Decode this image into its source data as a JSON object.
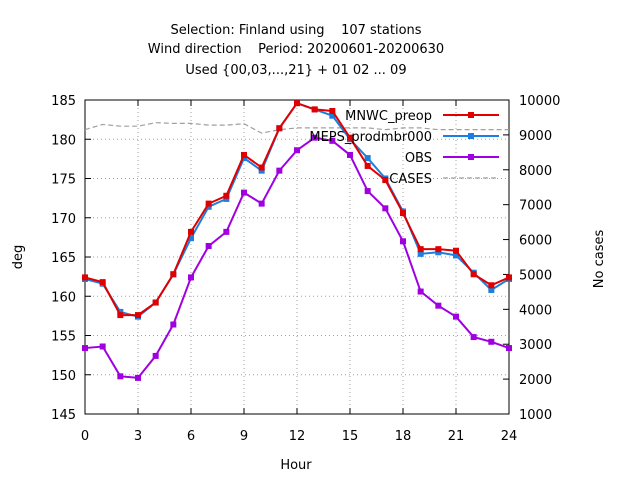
{
  "chart_data": {
    "type": "line",
    "title_lines": [
      "Selection: Finland using    107 stations",
      "Wind direction    Period: 20200601-20200630",
      "Used {00,03,...,21} + 01 02 ... 09"
    ],
    "xlabel": "Hour",
    "ylabel": "deg",
    "y2label": "No cases",
    "xlim": [
      0,
      24
    ],
    "ylim": [
      145,
      185
    ],
    "y2lim": [
      1000,
      10000
    ],
    "xticks": [
      0,
      3,
      6,
      9,
      12,
      15,
      18,
      21,
      24
    ],
    "yticks": [
      145,
      150,
      155,
      160,
      165,
      170,
      175,
      180,
      185
    ],
    "y2ticks": [
      1000,
      2000,
      3000,
      4000,
      5000,
      6000,
      7000,
      8000,
      9000,
      10000
    ],
    "grid": true,
    "legend_position": "top-right",
    "x": [
      0,
      1,
      2,
      3,
      4,
      5,
      6,
      7,
      8,
      9,
      10,
      11,
      12,
      13,
      14,
      15,
      16,
      17,
      18,
      19,
      20,
      21,
      22,
      23,
      24
    ],
    "series": [
      {
        "name": "MNWC_preop",
        "color": "#e00000",
        "marker": "square",
        "axis": "left",
        "values": [
          162.4,
          161.8,
          157.6,
          157.6,
          159.2,
          162.8,
          168.2,
          171.8,
          172.8,
          178.0,
          176.4,
          181.4,
          184.6,
          183.8,
          183.6,
          180.2,
          176.6,
          174.8,
          170.6,
          166.0,
          166.0,
          165.8,
          162.8,
          161.4,
          162.4
        ]
      },
      {
        "name": "MEPS_prodmbr000",
        "color": "#1a7fe0",
        "marker": "square",
        "axis": "left",
        "values": [
          162.2,
          161.6,
          158.0,
          157.4,
          159.2,
          162.8,
          167.4,
          171.4,
          172.4,
          177.6,
          176.0,
          181.4,
          184.6,
          183.8,
          183.0,
          180.0,
          177.6,
          175.0,
          170.8,
          165.4,
          165.6,
          165.2,
          163.0,
          160.8,
          162.2
        ]
      },
      {
        "name": "OBS",
        "color": "#a000e0",
        "marker": "square",
        "axis": "left",
        "values": [
          153.4,
          153.6,
          149.8,
          149.6,
          152.4,
          156.4,
          162.4,
          166.4,
          168.2,
          173.2,
          171.8,
          176.0,
          178.6,
          180.2,
          179.8,
          178.0,
          173.4,
          171.2,
          167.0,
          160.6,
          158.8,
          157.4,
          154.8,
          154.2,
          153.4
        ]
      },
      {
        "name": "CASES",
        "color": "#a0a0a0",
        "marker": "none",
        "dashed": true,
        "axis": "right",
        "values": [
          9150,
          9300,
          9250,
          9250,
          9350,
          9330,
          9330,
          9280,
          9280,
          9320,
          9050,
          9150,
          9200,
          9200,
          9200,
          9200,
          9200,
          9150,
          9200,
          9200,
          9150,
          9150,
          9150,
          9150,
          9150
        ]
      }
    ]
  }
}
